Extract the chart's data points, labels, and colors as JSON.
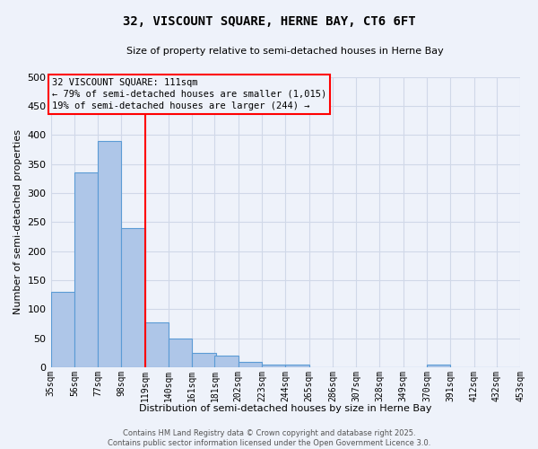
{
  "title1": "32, VISCOUNT SQUARE, HERNE BAY, CT6 6FT",
  "title2": "Size of property relative to semi-detached houses in Herne Bay",
  "xlabel": "Distribution of semi-detached houses by size in Herne Bay",
  "ylabel": "Number of semi-detached properties",
  "bin_edges": [
    35,
    56,
    77,
    98,
    119,
    140,
    161,
    181,
    202,
    223,
    244,
    265,
    286,
    307,
    328,
    349,
    370,
    391,
    412,
    432,
    453
  ],
  "bar_heights": [
    130,
    335,
    390,
    240,
    77,
    50,
    25,
    20,
    10,
    5,
    5,
    0,
    0,
    0,
    0,
    0,
    5,
    0,
    0,
    0
  ],
  "bar_color": "#aec6e8",
  "bar_edge_color": "#5b9bd5",
  "property_line_x": 119,
  "property_line_color": "red",
  "annotation_lines": [
    "32 VISCOUNT SQUARE: 111sqm",
    "← 79% of semi-detached houses are smaller (1,015)",
    "19% of semi-detached houses are larger (244) →"
  ],
  "annotation_box_color": "red",
  "ylim": [
    0,
    500
  ],
  "grid_color": "#d0d8e8",
  "background_color": "#eef2fa",
  "footer_text": "Contains HM Land Registry data © Crown copyright and database right 2025.\nContains public sector information licensed under the Open Government Licence 3.0.",
  "tick_labels": [
    "35sqm",
    "56sqm",
    "77sqm",
    "98sqm",
    "119sqm",
    "140sqm",
    "161sqm",
    "181sqm",
    "202sqm",
    "223sqm",
    "244sqm",
    "265sqm",
    "286sqm",
    "307sqm",
    "328sqm",
    "349sqm",
    "370sqm",
    "391sqm",
    "412sqm",
    "432sqm",
    "453sqm"
  ],
  "yticks": [
    0,
    50,
    100,
    150,
    200,
    250,
    300,
    350,
    400,
    450,
    500
  ],
  "title1_fontsize": 10,
  "title2_fontsize": 8
}
